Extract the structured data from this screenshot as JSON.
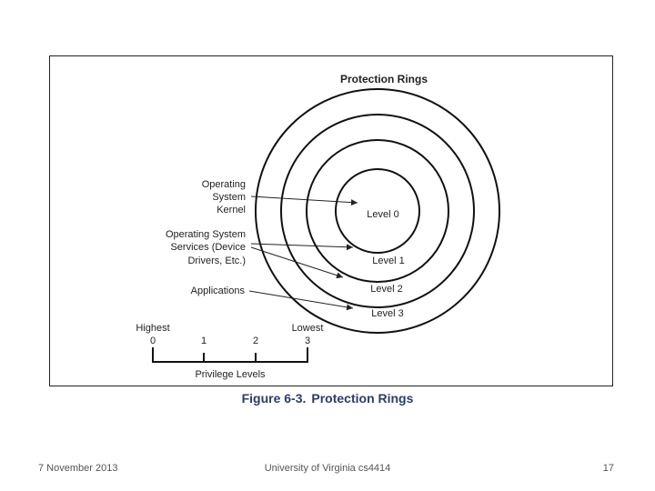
{
  "diagram": {
    "title": "Protection Rings",
    "rings": [
      "Level 0",
      "Level 1",
      "Level 2",
      "Level 3"
    ],
    "labels": {
      "kernel": [
        "Operating",
        "System",
        "Kernel"
      ],
      "services": [
        "Operating System",
        "Services (Device",
        "Drivers, Etc.)"
      ],
      "applications": "Applications"
    },
    "privilege": {
      "highest": "Highest",
      "lowest": "Lowest",
      "ticks": [
        "0",
        "1",
        "2",
        "3"
      ],
      "axis_label": "Privilege Levels"
    }
  },
  "caption": {
    "number": "Figure 6-3.",
    "title": "Protection Rings"
  },
  "footer": {
    "date": "7 November 2013",
    "source": "University of Virginia cs4414",
    "page": "17"
  }
}
